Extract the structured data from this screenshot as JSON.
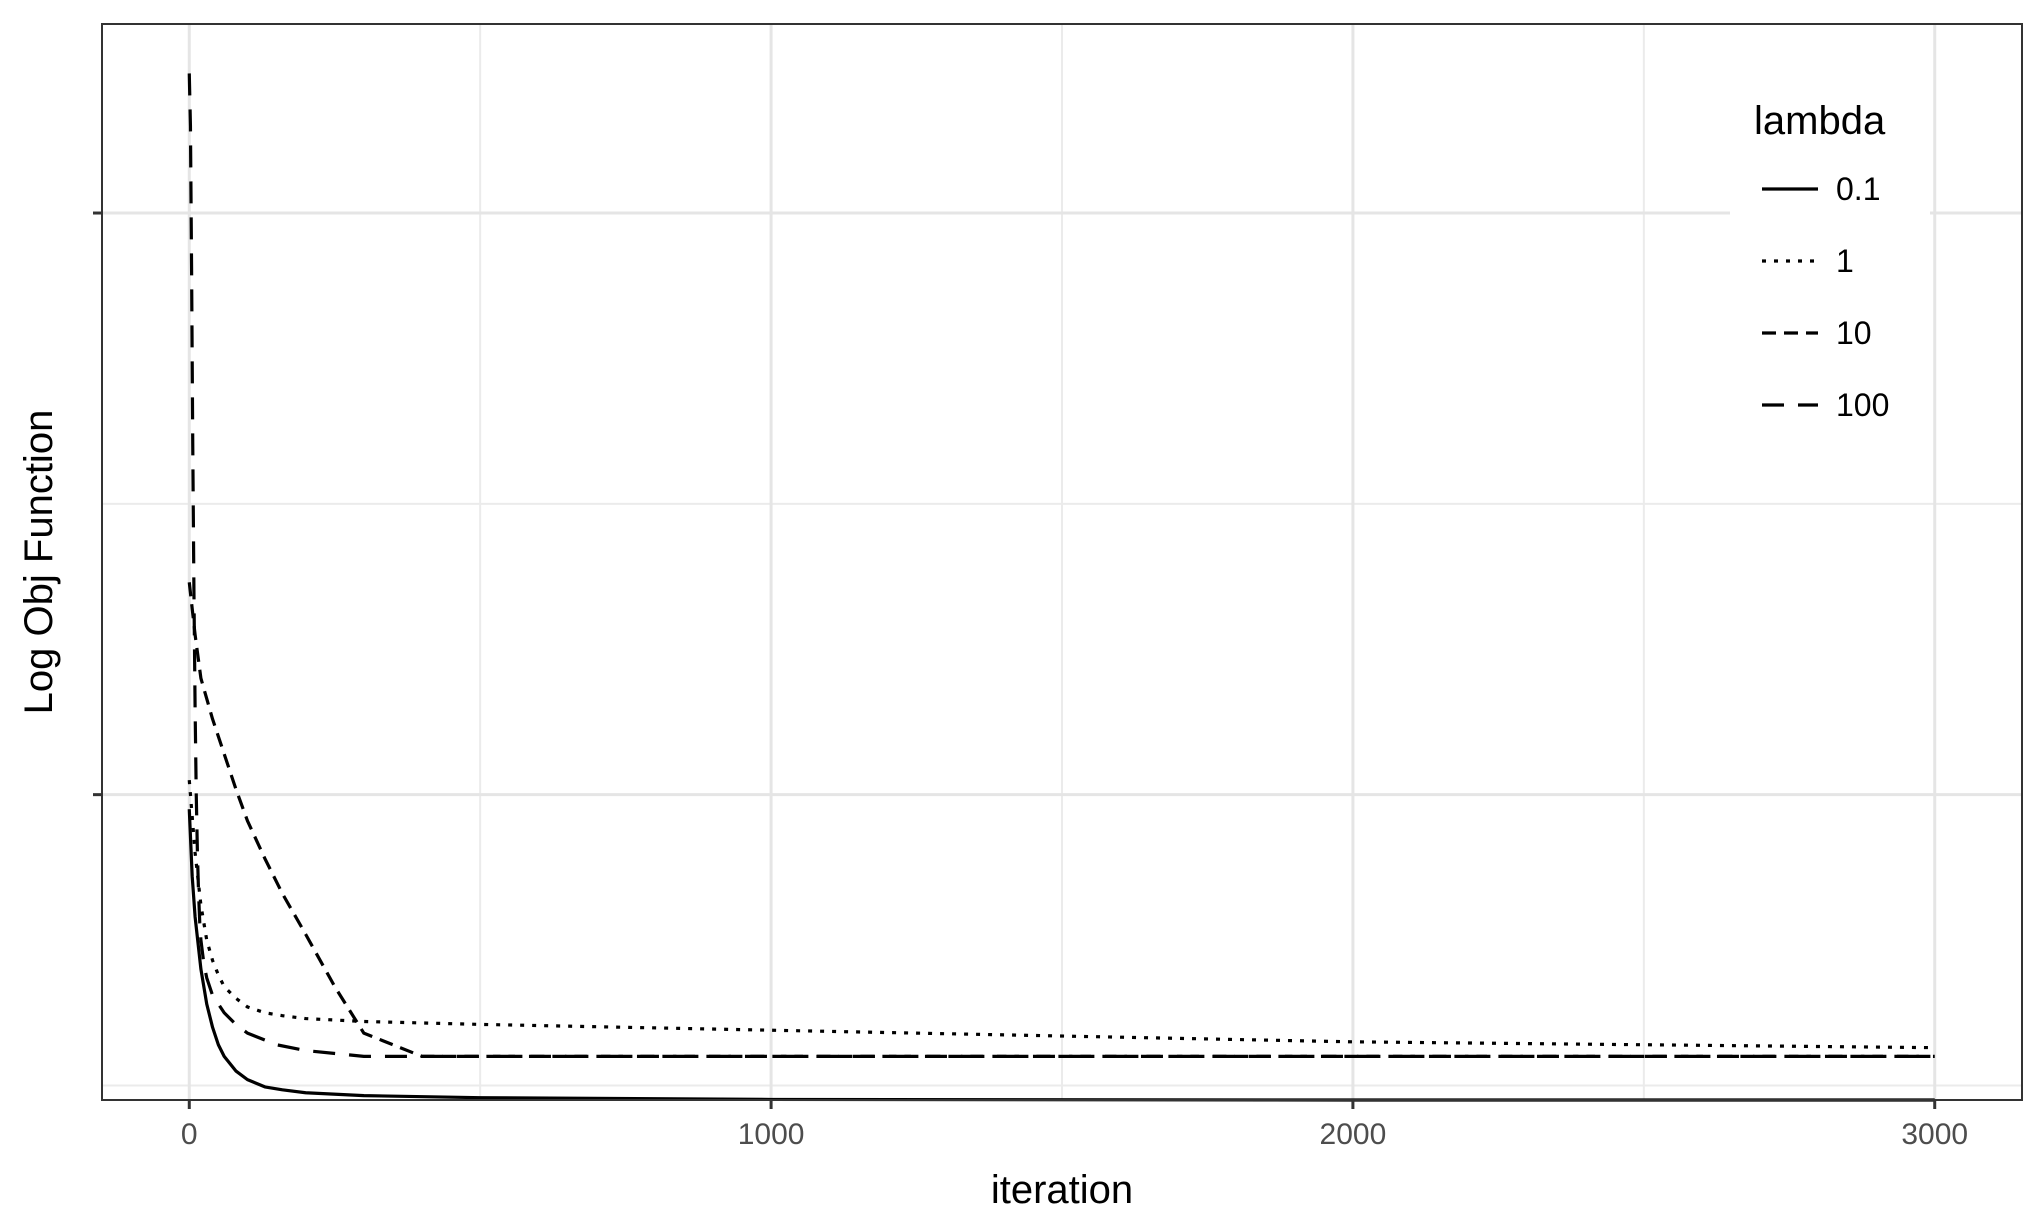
{
  "chart_data": {
    "type": "line",
    "title": "",
    "xlabel": "iteration",
    "ylabel": "Log Obj Function",
    "xlim": [
      -150,
      3150
    ],
    "ylim": [
      0.95,
      4.65
    ],
    "x_ticks": [
      0,
      1000,
      2000,
      3000
    ],
    "x_tick_labels": [
      "0",
      "1000",
      "2000",
      "3000"
    ],
    "y_ticks": [
      2,
      4
    ],
    "y_tick_labels": [
      "",
      ""
    ],
    "grid": true,
    "legend": {
      "title": "lambda",
      "position": "top-right"
    },
    "series": [
      {
        "name": "0.1",
        "line_style": "solid",
        "x": [
          0,
          5,
          10,
          20,
          30,
          40,
          50,
          60,
          80,
          100,
          130,
          160,
          200,
          300,
          500,
          1000,
          2000,
          3000
        ],
        "y": [
          1.95,
          1.72,
          1.58,
          1.4,
          1.28,
          1.2,
          1.14,
          1.1,
          1.05,
          1.02,
          0.995,
          0.985,
          0.975,
          0.965,
          0.958,
          0.952,
          0.95,
          0.95
        ]
      },
      {
        "name": "1",
        "line_style": "dotted",
        "x": [
          0,
          10,
          20,
          30,
          40,
          50,
          60,
          80,
          100,
          130,
          160,
          200,
          300,
          500,
          1000,
          2000,
          3000
        ],
        "y": [
          2.05,
          1.8,
          1.62,
          1.5,
          1.43,
          1.38,
          1.34,
          1.3,
          1.27,
          1.25,
          1.24,
          1.23,
          1.22,
          1.21,
          1.19,
          1.15,
          1.13
        ]
      },
      {
        "name": "10",
        "line_style": "dashed",
        "x": [
          0,
          10,
          20,
          40,
          60,
          80,
          100,
          130,
          160,
          200,
          250,
          300,
          400,
          500,
          1000,
          2000,
          3000
        ],
        "y": [
          2.73,
          2.55,
          2.4,
          2.26,
          2.14,
          2.02,
          1.91,
          1.78,
          1.66,
          1.52,
          1.34,
          1.18,
          1.1,
          1.1,
          1.1,
          1.1,
          1.1
        ]
      },
      {
        "name": "100",
        "line_style": "longdash",
        "x": [
          0,
          2,
          4,
          6,
          8,
          10,
          12,
          14,
          16,
          18,
          20,
          25,
          30,
          40,
          60,
          80,
          100,
          150,
          200,
          300,
          400,
          1000,
          2000,
          3000
        ],
        "y": [
          4.48,
          4.3,
          3.8,
          3.2,
          2.7,
          2.3,
          2.0,
          1.8,
          1.66,
          1.56,
          1.5,
          1.42,
          1.37,
          1.31,
          1.25,
          1.21,
          1.18,
          1.14,
          1.12,
          1.1,
          1.1,
          1.1,
          1.1,
          1.1
        ]
      }
    ]
  }
}
